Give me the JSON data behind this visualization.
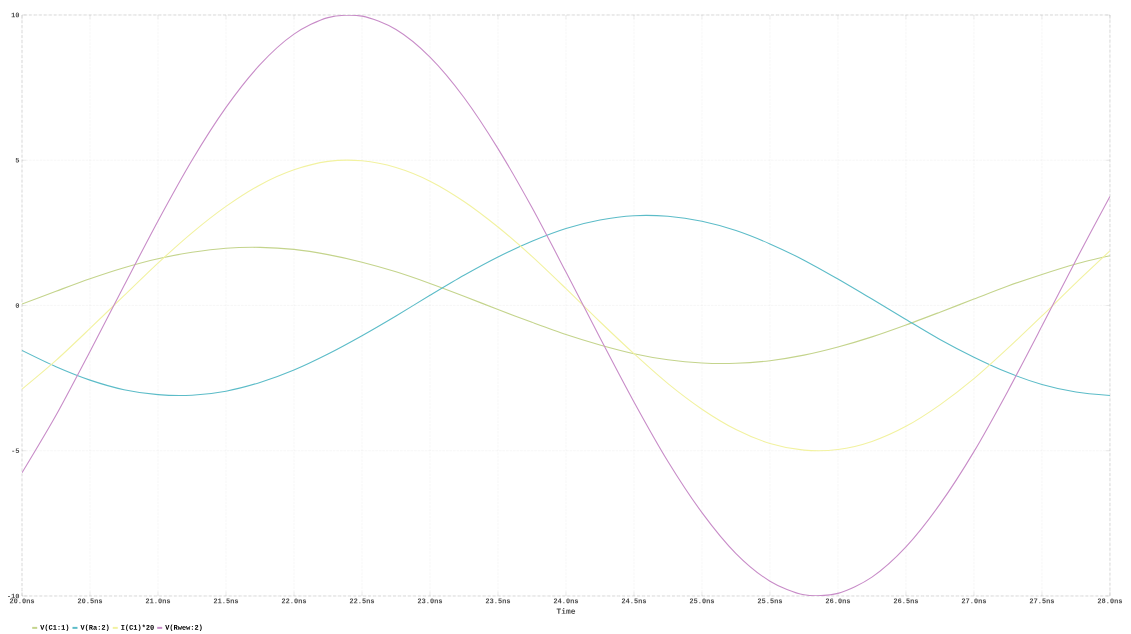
{
  "chart_data": {
    "type": "line",
    "xlabel": "Time",
    "x": [
      20,
      20.25,
      20.5,
      20.75,
      21,
      21.25,
      21.5,
      21.75,
      22,
      22.25,
      22.5,
      22.75,
      23,
      23.25,
      23.5,
      23.75,
      24,
      24.25,
      24.5,
      24.75,
      25,
      25.25,
      25.5,
      25.75,
      26,
      26.25,
      26.5,
      26.75,
      27,
      27.25,
      27.5,
      27.75,
      28
    ],
    "series": [
      {
        "name": "V(C1:1)",
        "color": "#c4d48c",
        "values": [
          0.05,
          0.49,
          0.92,
          1.3,
          1.61,
          1.83,
          1.97,
          2.0,
          1.93,
          1.75,
          1.49,
          1.16,
          0.76,
          0.32,
          -0.14,
          -0.58,
          -1.0,
          -1.36,
          -1.66,
          -1.87,
          -1.98,
          -1.99,
          -1.9,
          -1.71,
          -1.43,
          -1.08,
          -0.67,
          -0.23,
          0.22,
          0.67,
          1.07,
          1.43,
          1.71
        ]
      },
      {
        "name": "V(Ra:2)",
        "color": "#5cbcc8",
        "values": [
          -1.55,
          -2.11,
          -2.57,
          -2.9,
          -3.07,
          -3.09,
          -2.95,
          -2.65,
          -2.22,
          -1.67,
          -1.04,
          -0.36,
          0.35,
          1.04,
          1.67,
          2.21,
          2.65,
          2.94,
          3.09,
          3.07,
          2.9,
          2.58,
          2.12,
          1.56,
          0.91,
          0.22,
          -0.48,
          -1.17,
          -1.78,
          -2.31,
          -2.72,
          -2.98,
          -3.1
        ]
      },
      {
        "name": "I(C1)*20",
        "color": "#f2f2a0",
        "values": [
          -2.88,
          -1.89,
          -0.79,
          0.34,
          1.46,
          2.5,
          3.41,
          4.15,
          4.67,
          4.96,
          4.98,
          4.75,
          4.28,
          3.58,
          2.7,
          1.69,
          0.58,
          -0.56,
          -1.66,
          -2.69,
          -3.57,
          -4.27,
          -4.75,
          -4.98,
          -4.96,
          -4.68,
          -4.16,
          -3.42,
          -2.52,
          -1.47,
          -0.36,
          0.78,
          1.88
        ]
      },
      {
        "name": "V(Rwew:2)",
        "color": "#c88cc8",
        "values": [
          -5.76,
          -3.78,
          -1.58,
          0.68,
          2.91,
          5.0,
          6.82,
          8.29,
          9.34,
          9.91,
          9.96,
          9.5,
          8.55,
          7.16,
          5.4,
          3.37,
          1.15,
          -1.11,
          -3.32,
          -5.37,
          -7.13,
          -8.54,
          -9.49,
          -9.96,
          -9.91,
          -9.35,
          -8.31,
          -6.84,
          -5.03,
          -2.94,
          -0.71,
          1.56,
          3.75
        ]
      }
    ],
    "xlim": [
      20,
      28
    ],
    "ylim": [
      -10,
      10
    ],
    "xticks": [
      {
        "value": 20,
        "label": "20.0ns"
      },
      {
        "value": 20.5,
        "label": "20.5ns"
      },
      {
        "value": 21,
        "label": "21.0ns"
      },
      {
        "value": 21.5,
        "label": "21.5ns"
      },
      {
        "value": 22,
        "label": "22.0ns"
      },
      {
        "value": 22.5,
        "label": "22.5ns"
      },
      {
        "value": 23,
        "label": "23.0ns"
      },
      {
        "value": 23.5,
        "label": "23.5ns"
      },
      {
        "value": 24,
        "label": "24.0ns"
      },
      {
        "value": 24.5,
        "label": "24.5ns"
      },
      {
        "value": 25,
        "label": "25.0ns"
      },
      {
        "value": 25.5,
        "label": "25.5ns"
      },
      {
        "value": 26,
        "label": "26.0ns"
      },
      {
        "value": 26.5,
        "label": "26.5ns"
      },
      {
        "value": 27,
        "label": "27.0ns"
      },
      {
        "value": 27.5,
        "label": "27.5ns"
      },
      {
        "value": 28,
        "label": "28.0ns"
      }
    ],
    "yticks": [
      -10,
      -5,
      0,
      5,
      10
    ],
    "grid": true,
    "legend": "bottom left",
    "marker": "none",
    "line_style": "solid"
  }
}
